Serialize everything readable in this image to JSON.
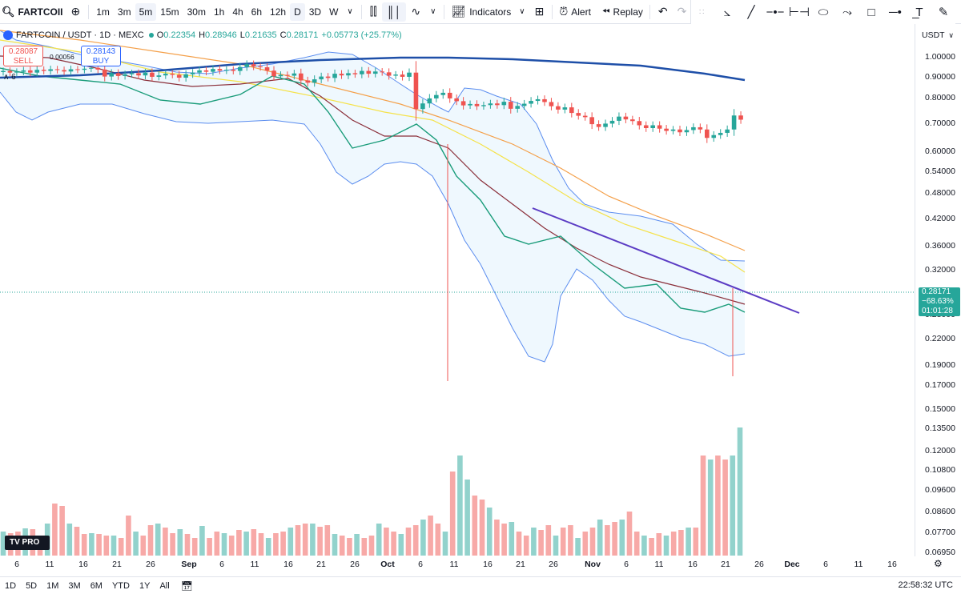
{
  "toolbar": {
    "symbol": "FARTCOII",
    "timeframes": [
      "1m",
      "3m",
      "5m",
      "15m",
      "30m",
      "1h",
      "4h",
      "6h",
      "12h",
      "D",
      "3D",
      "W"
    ],
    "active_timeframes": [
      "5m",
      "D"
    ],
    "indicators_label": "Indicators",
    "alert_label": "Alert",
    "replay_label": "Replay"
  },
  "legend": {
    "title": "FARTCOIN / USDT · 1D · MEXC",
    "open_label": "O",
    "open": "0.22354",
    "high_label": "H",
    "high": "0.28946",
    "low_label": "L",
    "low": "0.21635",
    "close_label": "C",
    "close": "0.28171",
    "change": "+0.05773 (+25.77%)"
  },
  "trade": {
    "sell_price": "0.28087",
    "sell_label": "SELL",
    "buy_price": "0.28143",
    "buy_label": "BUY",
    "spread": "0.00056"
  },
  "collapse_count": "6",
  "price_axis": {
    "currency": "USDT",
    "labels": [
      "1.00000",
      "0.90000",
      "0.80000",
      "0.70000",
      "0.60000",
      "0.54000",
      "0.48000",
      "0.42000",
      "0.36000",
      "0.32000",
      "0.28000",
      "0.22000",
      "0.19000",
      "0.17000",
      "0.15000",
      "0.13500",
      "0.12000",
      "0.10800",
      "0.09600",
      "0.08600",
      "0.07700",
      "0.06950"
    ],
    "current_price": "0.28171",
    "current_change": "−68.63%",
    "countdown": "01:01:28"
  },
  "time_axis": {
    "labels": [
      "6",
      "11",
      "16",
      "21",
      "26",
      "Sep",
      "6",
      "11",
      "16",
      "21",
      "26",
      "Oct",
      "6",
      "11",
      "16",
      "21",
      "26",
      "Nov",
      "6",
      "11",
      "16",
      "21",
      "26",
      "Dec",
      "6",
      "11",
      "16"
    ]
  },
  "bottombar": {
    "ranges": [
      "1D",
      "5D",
      "1M",
      "3M",
      "6M",
      "YTD",
      "1Y",
      "All"
    ],
    "clock": "22:58:32 UTC"
  },
  "colors": {
    "up": "#26a69a",
    "down": "#ef5350",
    "accent": "#2962ff",
    "ma_long": "#1e4fa8",
    "trendline": "#5b3cc4"
  },
  "icons": {
    "search": "search-icon",
    "add": "plus-circle-icon",
    "indicators": "indicators-icon",
    "alert": "alarm-clock-icon",
    "replay": "rewind-icon",
    "undo": "undo-icon",
    "redo": "redo-icon"
  }
}
